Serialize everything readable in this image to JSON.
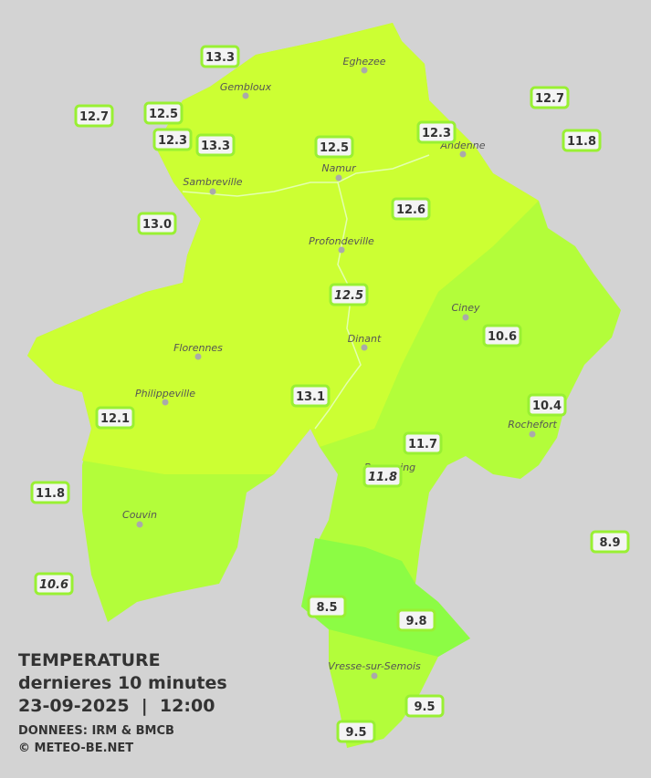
{
  "legend": {
    "title": "TEMPERATURE",
    "subtitle": "dernieres 10 minutes",
    "datetime": "23-09-2025  |  12:00",
    "source": "DONNEES: IRM & BMCB",
    "credit": "© METEO-BE.NET"
  },
  "towns": [
    "Eghezee",
    "Gembloux",
    "Andenne",
    "Namur",
    "Sambreville",
    "Profondeville",
    "Ciney",
    "Dinant",
    "Florennes",
    "Philippeville",
    "Rochefort",
    "Beauraing",
    "Couvin",
    "Vresse-sur-Semois"
  ],
  "stations": [
    {
      "label": "13.3"
    },
    {
      "label": "12.7"
    },
    {
      "label": "12.5"
    },
    {
      "label": "12.3"
    },
    {
      "label": "13.3"
    },
    {
      "label": "12.5"
    },
    {
      "label": "12.3"
    },
    {
      "label": "12.7"
    },
    {
      "label": "11.8"
    },
    {
      "label": "13.0"
    },
    {
      "label": "12.6"
    },
    {
      "label": "12.5",
      "italic": true
    },
    {
      "label": "10.6"
    },
    {
      "label": "13.1"
    },
    {
      "label": "10.4"
    },
    {
      "label": "12.1"
    },
    {
      "label": "11.7"
    },
    {
      "label": "11.8",
      "italic": true
    },
    {
      "label": "11.8"
    },
    {
      "label": "8.9"
    },
    {
      "label": "10.6",
      "italic": true
    },
    {
      "label": "8.5"
    },
    {
      "label": "9.8"
    },
    {
      "label": "9.5"
    },
    {
      "label": "9.5"
    }
  ]
}
